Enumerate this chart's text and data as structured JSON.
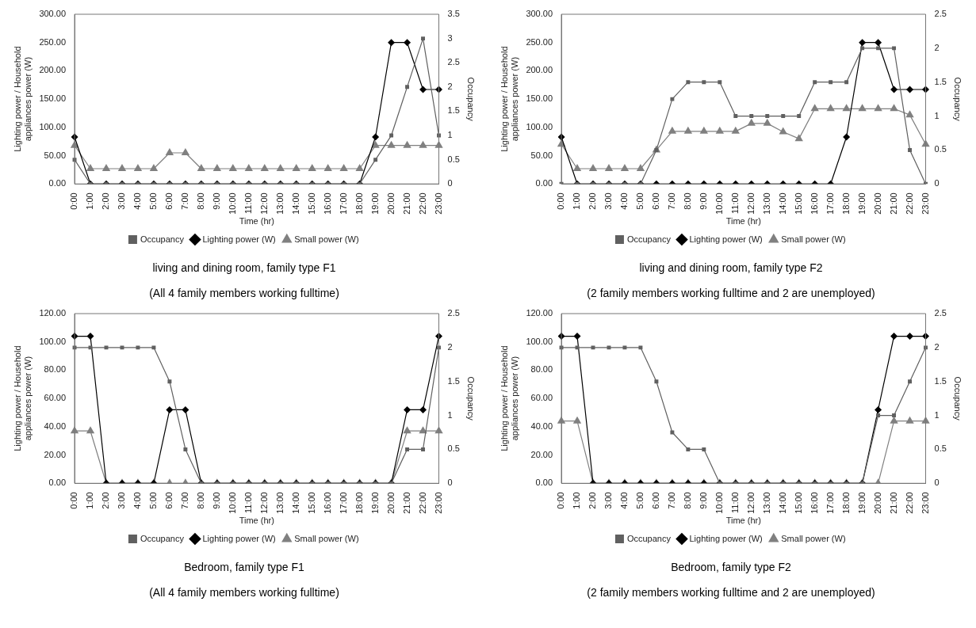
{
  "chart_data": [
    {
      "type": "line",
      "title": "living and dining room, family type F1",
      "subtitle": "(All 4 family members working fulltime)",
      "xlabel": "Time (hr)",
      "ylabel": "Lighting power / Household appliances power (W)",
      "y2label": "Occupancy",
      "categories": [
        "0:00",
        "1:00",
        "2:00",
        "3:00",
        "4:00",
        "5:00",
        "6:00",
        "7:00",
        "8:00",
        "9:00",
        "10:00",
        "11:00",
        "12:00",
        "13:00",
        "14:00",
        "15:00",
        "16:00",
        "17:00",
        "18:00",
        "19:00",
        "20:00",
        "21:00",
        "22:00",
        "23:00"
      ],
      "series": [
        {
          "name": "Lighting power (W)",
          "color": "#000000",
          "marker": "diamond",
          "values": [
            83,
            0,
            0,
            0,
            0,
            0,
            0,
            0,
            0,
            0,
            0,
            0,
            0,
            0,
            0,
            0,
            0,
            0,
            0,
            83,
            250,
            250,
            167,
            167
          ]
        },
        {
          "name": "Small power (W)",
          "color": "#808080",
          "marker": "triangle",
          "values": [
            68,
            27,
            27,
            27,
            27,
            27,
            55,
            55,
            27,
            27,
            27,
            27,
            27,
            27,
            27,
            27,
            27,
            27,
            27,
            68,
            68,
            68,
            68,
            68
          ]
        },
        {
          "name": "Occupancy",
          "color": "#606060",
          "marker": "square",
          "axis": "y2",
          "values": [
            0.5,
            0,
            0,
            0,
            0,
            0,
            0,
            0,
            0,
            0,
            0,
            0,
            0,
            0,
            0,
            0,
            0,
            0,
            0,
            0.5,
            1,
            2,
            3,
            1
          ]
        }
      ],
      "ylim": [
        0,
        300
      ],
      "yticks": [
        {
          "value": 0,
          "label": "0.00"
        },
        {
          "value": 50,
          "label": "50.00"
        },
        {
          "value": 100,
          "label": "100.00"
        },
        {
          "value": 150,
          "label": "150.00"
        },
        {
          "value": 200,
          "label": "200.00"
        },
        {
          "value": 250,
          "label": "250.00"
        },
        {
          "value": 300,
          "label": "300.00"
        }
      ],
      "y2lim": [
        0,
        3.5
      ],
      "y2ticks": [
        0,
        0.5,
        1,
        1.5,
        2,
        2.5,
        3,
        3.5
      ],
      "grid": false,
      "legend": "bottom"
    },
    {
      "type": "line",
      "title": "living and dining room, family type F2",
      "subtitle": "(2 family members working fulltime and 2 are unemployed)",
      "xlabel": "Time (hr)",
      "ylabel": "Lighting power / Household appliances power (W)",
      "y2label": "Occupancy",
      "categories": [
        "0:00",
        "1:00",
        "2:00",
        "3:00",
        "4:00",
        "5:00",
        "6:00",
        "7:00",
        "8:00",
        "9:00",
        "10:00",
        "11:00",
        "12:00",
        "13:00",
        "14:00",
        "15:00",
        "16:00",
        "17:00",
        "18:00",
        "19:00",
        "20:00",
        "21:00",
        "22:00",
        "23:00"
      ],
      "series": [
        {
          "name": "Lighting power (W)",
          "color": "#000000",
          "marker": "diamond",
          "values": [
            83,
            0,
            0,
            0,
            0,
            0,
            0,
            0,
            0,
            0,
            0,
            0,
            0,
            0,
            0,
            0,
            0,
            0,
            83,
            250,
            250,
            167,
            167,
            167
          ]
        },
        {
          "name": "Small power (W)",
          "color": "#808080",
          "marker": "triangle",
          "values": [
            70,
            27,
            27,
            27,
            27,
            27,
            60,
            93,
            93,
            93,
            93,
            93,
            107,
            107,
            92,
            80,
            133,
            133,
            133,
            133,
            133,
            133,
            122,
            70
          ]
        },
        {
          "name": "Occupancy",
          "color": "#606060",
          "marker": "square",
          "axis": "y2",
          "values": [
            0,
            0,
            0,
            0,
            0,
            0,
            0.5,
            1.25,
            1.5,
            1.5,
            1.5,
            1,
            1,
            1,
            1,
            1,
            1.5,
            1.5,
            1.5,
            2,
            2,
            2,
            0.5,
            0
          ]
        }
      ],
      "ylim": [
        0,
        300
      ],
      "yticks": [
        {
          "value": 0,
          "label": "0.00"
        },
        {
          "value": 50,
          "label": "50.00"
        },
        {
          "value": 100,
          "label": "100.00"
        },
        {
          "value": 150,
          "label": "150.00"
        },
        {
          "value": 200,
          "label": "200.00"
        },
        {
          "value": 250,
          "label": "250.00"
        },
        {
          "value": 300,
          "label": "300.00"
        }
      ],
      "y2lim": [
        0,
        2.5
      ],
      "y2ticks": [
        0,
        0.5,
        1,
        1.5,
        2,
        2.5
      ],
      "grid": false,
      "legend": "bottom"
    },
    {
      "type": "line",
      "title": "Bedroom, family type F1",
      "subtitle": "(All 4 family members working fulltime)",
      "xlabel": "Time (hr)",
      "ylabel": "Lighting power / Household appliances power (W)",
      "y2label": "Occupancy",
      "categories": [
        "0:00",
        "1:00",
        "2:00",
        "3:00",
        "4:00",
        "5:00",
        "6:00",
        "7:00",
        "8:00",
        "9:00",
        "10:00",
        "11:00",
        "12:00",
        "13:00",
        "14:00",
        "15:00",
        "16:00",
        "17:00",
        "18:00",
        "19:00",
        "20:00",
        "21:00",
        "22:00",
        "23:00"
      ],
      "series": [
        {
          "name": "Lighting power (W)",
          "color": "#000000",
          "marker": "diamond",
          "values": [
            104,
            104,
            0,
            0,
            0,
            0,
            52,
            52,
            0,
            0,
            0,
            0,
            0,
            0,
            0,
            0,
            0,
            0,
            0,
            0,
            0,
            52,
            52,
            104
          ]
        },
        {
          "name": "Small power (W)",
          "color": "#808080",
          "marker": "triangle",
          "values": [
            37,
            37,
            0,
            0,
            0,
            0,
            0,
            0,
            0,
            0,
            0,
            0,
            0,
            0,
            0,
            0,
            0,
            0,
            0,
            0,
            0,
            37,
            37,
            37
          ]
        },
        {
          "name": "Occupancy",
          "color": "#606060",
          "marker": "square",
          "axis": "y2",
          "values": [
            2,
            2,
            2,
            2,
            2,
            2,
            1.5,
            0.5,
            0,
            0,
            0,
            0,
            0,
            0,
            0,
            0,
            0,
            0,
            0,
            0,
            0,
            0.5,
            0.5,
            2
          ]
        }
      ],
      "ylim": [
        0,
        120
      ],
      "yticks": [
        {
          "value": 0,
          "label": "0.00"
        },
        {
          "value": 20,
          "label": "20.00"
        },
        {
          "value": 40,
          "label": "40.00"
        },
        {
          "value": 60,
          "label": "60.00"
        },
        {
          "value": 80,
          "label": "80.00"
        },
        {
          "value": 100,
          "label": "100.00"
        },
        {
          "value": 120,
          "label": "120.00"
        }
      ],
      "y2lim": [
        0,
        2.5
      ],
      "y2ticks": [
        0,
        0.5,
        1,
        1.5,
        2,
        2.5
      ],
      "grid": false,
      "legend": "bottom"
    },
    {
      "type": "line",
      "title": "Bedroom, family type F2",
      "subtitle": "(2 family members working fulltime and 2 are unemployed)",
      "xlabel": "Time (hr)",
      "ylabel": "Lighting power / Household appliances power (W)",
      "y2label": "Occupancy",
      "categories": [
        "0:00",
        "1:00",
        "2:00",
        "3:00",
        "4:00",
        "5:00",
        "6:00",
        "7:00",
        "8:00",
        "9:00",
        "10:00",
        "11:00",
        "12:00",
        "13:00",
        "14:00",
        "15:00",
        "16:00",
        "17:00",
        "18:00",
        "19:00",
        "20:00",
        "21:00",
        "22:00",
        "23:00"
      ],
      "series": [
        {
          "name": "Lighting power (W)",
          "color": "#000000",
          "marker": "diamond",
          "values": [
            104,
            104,
            0,
            0,
            0,
            0,
            0,
            0,
            0,
            0,
            0,
            0,
            0,
            0,
            0,
            0,
            0,
            0,
            0,
            0,
            52,
            104,
            104,
            104
          ]
        },
        {
          "name": "Small power (W)",
          "color": "#808080",
          "marker": "triangle",
          "values": [
            44,
            44,
            0,
            0,
            0,
            0,
            0,
            0,
            0,
            0,
            0,
            0,
            0,
            0,
            0,
            0,
            0,
            0,
            0,
            0,
            0,
            44,
            44,
            44
          ]
        },
        {
          "name": "Occupancy",
          "color": "#606060",
          "marker": "square",
          "axis": "y2",
          "values": [
            2,
            2,
            2,
            2,
            2,
            2,
            1.5,
            0.75,
            0.5,
            0.5,
            0,
            0,
            0,
            0,
            0,
            0,
            0,
            0,
            0,
            0,
            1,
            1,
            1.5,
            2
          ]
        }
      ],
      "ylim": [
        0,
        120
      ],
      "yticks": [
        {
          "value": 0,
          "label": "0.00"
        },
        {
          "value": 20,
          "label": "20.00"
        },
        {
          "value": 40,
          "label": "40.00"
        },
        {
          "value": 60,
          "label": "60.00"
        },
        {
          "value": 80,
          "label": "80.00"
        },
        {
          "value": 100,
          "label": "100.00"
        },
        {
          "value": 120,
          "label": "120.00"
        }
      ],
      "y2lim": [
        0,
        2.5
      ],
      "y2ticks": [
        0,
        0.5,
        1,
        1.5,
        2,
        2.5
      ],
      "grid": false,
      "legend": "bottom"
    }
  ]
}
